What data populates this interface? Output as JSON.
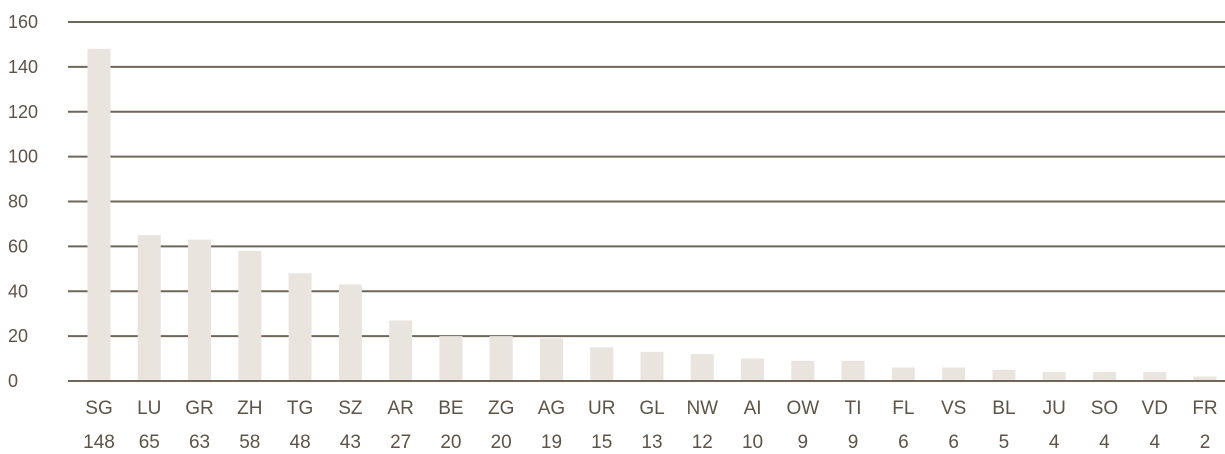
{
  "chart_data": {
    "type": "bar",
    "categories": [
      "SG",
      "LU",
      "GR",
      "ZH",
      "TG",
      "SZ",
      "AR",
      "BE",
      "ZG",
      "AG",
      "UR",
      "GL",
      "NW",
      "AI",
      "OW",
      "TI",
      "FL",
      "VS",
      "BL",
      "JU",
      "SO",
      "VD",
      "FR"
    ],
    "values": [
      148,
      65,
      63,
      58,
      48,
      43,
      27,
      20,
      20,
      19,
      15,
      13,
      12,
      10,
      9,
      9,
      6,
      6,
      5,
      4,
      4,
      4,
      2
    ],
    "value_labels": [
      "148",
      "65",
      "63",
      "58",
      "48",
      "43",
      "27",
      "20",
      "20",
      "19",
      "15",
      "13",
      "12",
      "10",
      "9",
      "9",
      "6",
      "6",
      "5",
      "4",
      "4",
      "4",
      "2"
    ],
    "title": "",
    "xlabel": "",
    "ylabel": "",
    "ylim": [
      0,
      160
    ],
    "yticks": [
      "0",
      "20",
      "40",
      "60",
      "80",
      "100",
      "120",
      "140",
      "160"
    ],
    "grid": true,
    "colors": {
      "bar": "#e9e4de",
      "grid": "#6f665a",
      "text": "#5e5347"
    }
  }
}
